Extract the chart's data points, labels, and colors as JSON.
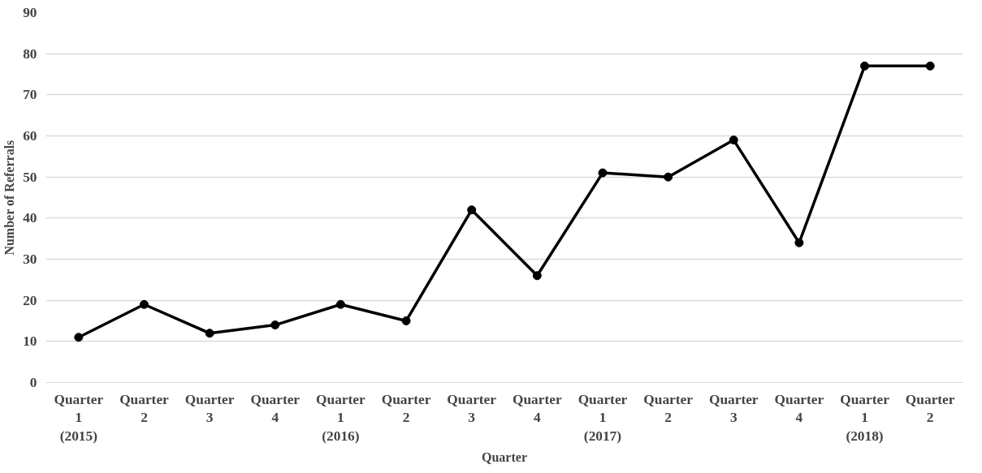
{
  "chart_data": {
    "type": "line",
    "xlabel": "Quarter",
    "ylabel": "Number of Referrals",
    "categories": [
      "Quarter 1 (2015)",
      "Quarter 2",
      "Quarter 3",
      "Quarter 4",
      "Quarter 1 (2016)",
      "Quarter 2",
      "Quarter 3",
      "Quarter 4",
      "Quarter 1 (2017)",
      "Quarter 2",
      "Quarter 3",
      "Quarter 4",
      "Quarter 1 (2018)",
      "Quarter 2"
    ],
    "series": [
      {
        "color": "#000000",
        "values": [
          11,
          19,
          12,
          14,
          19,
          15,
          42,
          26,
          51,
          50,
          59,
          34,
          77,
          77
        ]
      }
    ],
    "ylim": [
      0,
      90
    ],
    "yticks": [
      0,
      10,
      20,
      30,
      40,
      50,
      60,
      70,
      80,
      90
    ],
    "grid": "y",
    "marker": "circle",
    "line_style": "solid"
  }
}
